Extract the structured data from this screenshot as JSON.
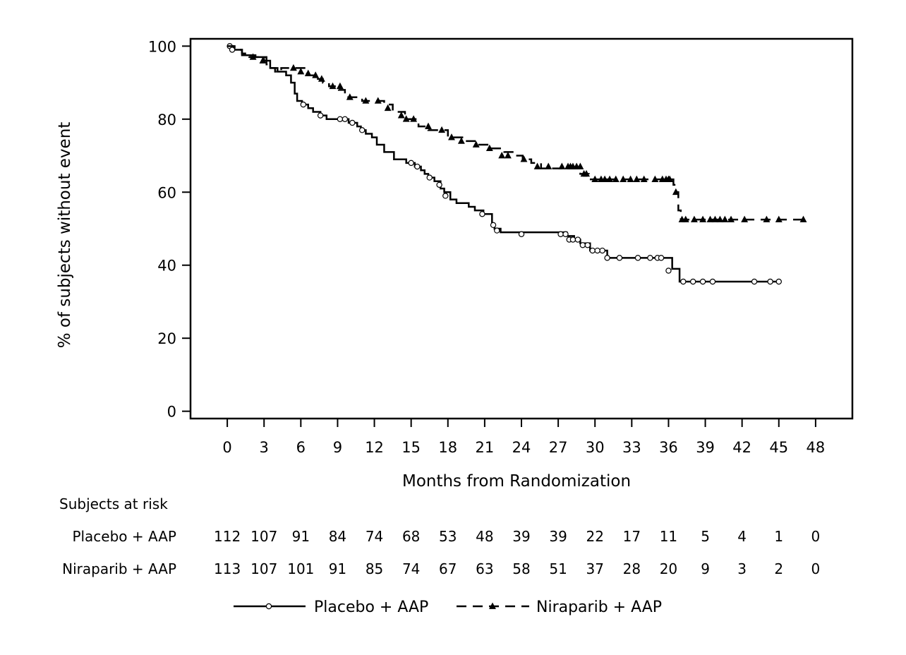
{
  "chart_data": {
    "type": "line",
    "subtype": "kaplan-meier",
    "xlabel": "Months from Randomization",
    "ylabel": "% of subjects without event",
    "xlim": [
      -3,
      51
    ],
    "ylim": [
      -2,
      102
    ],
    "xticks": [
      "0",
      "3",
      "6",
      "9",
      "12",
      "15",
      "18",
      "21",
      "24",
      "27",
      "30",
      "33",
      "36",
      "39",
      "42",
      "45",
      "48"
    ],
    "yticks": [
      "0",
      "20",
      "40",
      "60",
      "80",
      "100"
    ],
    "grid": false,
    "legend_position": "bottom",
    "series": [
      {
        "name": "Placebo + AAP",
        "line_style": "solid",
        "marker": "open-circle",
        "color": "#000000",
        "steps": [
          [
            0,
            100
          ],
          [
            0.5,
            99
          ],
          [
            1.2,
            97.5
          ],
          [
            2.3,
            97
          ],
          [
            3.2,
            96
          ],
          [
            3.5,
            94
          ],
          [
            4.1,
            93
          ],
          [
            4.8,
            92
          ],
          [
            5.2,
            90
          ],
          [
            5.5,
            87
          ],
          [
            5.7,
            85
          ],
          [
            6.1,
            84
          ],
          [
            6.6,
            83
          ],
          [
            7.0,
            82
          ],
          [
            7.6,
            81
          ],
          [
            8.1,
            80
          ],
          [
            9.9,
            79
          ],
          [
            10.6,
            78
          ],
          [
            10.9,
            77
          ],
          [
            11.3,
            76
          ],
          [
            11.8,
            75
          ],
          [
            12.2,
            73
          ],
          [
            12.8,
            71
          ],
          [
            13.6,
            69
          ],
          [
            14.6,
            68
          ],
          [
            15.3,
            67
          ],
          [
            15.8,
            66
          ],
          [
            16.1,
            65
          ],
          [
            16.4,
            64
          ],
          [
            16.9,
            63
          ],
          [
            17.4,
            61
          ],
          [
            17.7,
            60
          ],
          [
            18.2,
            58
          ],
          [
            18.7,
            57
          ],
          [
            19.7,
            56
          ],
          [
            20.2,
            55
          ],
          [
            20.9,
            54
          ],
          [
            21.6,
            51
          ],
          [
            21.8,
            50
          ],
          [
            22.3,
            49
          ],
          [
            27.7,
            48
          ],
          [
            28.3,
            47
          ],
          [
            28.8,
            46
          ],
          [
            29.6,
            44
          ],
          [
            31.0,
            42
          ],
          [
            36.3,
            39
          ],
          [
            36.9,
            35.5
          ],
          [
            45.0,
            35.5
          ]
        ],
        "censored": [
          [
            0.2,
            100
          ],
          [
            0.4,
            99
          ],
          [
            6.2,
            84
          ],
          [
            7.6,
            81
          ],
          [
            9.2,
            80
          ],
          [
            9.6,
            80
          ],
          [
            10.2,
            79
          ],
          [
            11.0,
            77
          ],
          [
            15.0,
            68
          ],
          [
            15.5,
            67
          ],
          [
            16.5,
            64
          ],
          [
            17.3,
            62
          ],
          [
            17.8,
            59
          ],
          [
            20.8,
            54
          ],
          [
            21.7,
            51
          ],
          [
            22.0,
            49.5
          ],
          [
            24.0,
            48.5
          ],
          [
            27.2,
            48.5
          ],
          [
            27.6,
            48.5
          ],
          [
            27.9,
            47
          ],
          [
            28.2,
            47
          ],
          [
            28.6,
            47
          ],
          [
            29.0,
            45.5
          ],
          [
            29.4,
            45.5
          ],
          [
            29.8,
            44
          ],
          [
            30.2,
            44
          ],
          [
            30.6,
            44
          ],
          [
            31.0,
            42
          ],
          [
            32.0,
            42
          ],
          [
            33.5,
            42
          ],
          [
            34.5,
            42
          ],
          [
            35.1,
            42
          ],
          [
            35.4,
            42
          ],
          [
            36.0,
            38.5
          ],
          [
            37.2,
            35.5
          ],
          [
            38.0,
            35.5
          ],
          [
            38.8,
            35.5
          ],
          [
            39.6,
            35.5
          ],
          [
            43.0,
            35.5
          ],
          [
            44.3,
            35.5
          ],
          [
            45.0,
            35.5
          ]
        ]
      },
      {
        "name": "Niraparib + AAP",
        "line_style": "dashed",
        "marker": "filled-triangle",
        "color": "#000000",
        "steps": [
          [
            0,
            100
          ],
          [
            0.6,
            99
          ],
          [
            1.2,
            98
          ],
          [
            1.8,
            97
          ],
          [
            2.5,
            96.5
          ],
          [
            3.0,
            96
          ],
          [
            3.2,
            95
          ],
          [
            3.5,
            94
          ],
          [
            3.9,
            93
          ],
          [
            4.4,
            94
          ],
          [
            6.5,
            92
          ],
          [
            7.3,
            91
          ],
          [
            7.8,
            90
          ],
          [
            8.3,
            89
          ],
          [
            9.1,
            88
          ],
          [
            9.6,
            86
          ],
          [
            11.0,
            85
          ],
          [
            12.8,
            84
          ],
          [
            13.5,
            82
          ],
          [
            14.5,
            80
          ],
          [
            15.6,
            78
          ],
          [
            16.4,
            77
          ],
          [
            18.0,
            75
          ],
          [
            19.3,
            74
          ],
          [
            20.2,
            73
          ],
          [
            21.4,
            72
          ],
          [
            22.6,
            71
          ],
          [
            23.4,
            70
          ],
          [
            24.1,
            69
          ],
          [
            24.8,
            68
          ],
          [
            25.6,
            66.5
          ],
          [
            28.8,
            65
          ],
          [
            29.5,
            63.5
          ],
          [
            36.4,
            62
          ],
          [
            36.6,
            60
          ],
          [
            36.8,
            55
          ],
          [
            37.0,
            52.5
          ],
          [
            47,
            52.5
          ]
        ],
        "censored": [
          [
            2.1,
            97
          ],
          [
            2.9,
            96
          ],
          [
            5.4,
            94
          ],
          [
            6.0,
            93
          ],
          [
            6.6,
            92.5
          ],
          [
            7.2,
            92
          ],
          [
            7.7,
            91
          ],
          [
            8.6,
            89
          ],
          [
            9.2,
            89
          ],
          [
            10.0,
            86
          ],
          [
            11.3,
            85
          ],
          [
            12.3,
            85
          ],
          [
            13.1,
            83
          ],
          [
            14.2,
            81
          ],
          [
            14.6,
            80
          ],
          [
            15.2,
            80
          ],
          [
            16.4,
            78
          ],
          [
            17.5,
            77
          ],
          [
            18.3,
            75
          ],
          [
            19.1,
            74
          ],
          [
            20.3,
            73
          ],
          [
            21.4,
            72
          ],
          [
            22.4,
            70
          ],
          [
            22.9,
            70
          ],
          [
            24.2,
            69
          ],
          [
            25.3,
            67
          ],
          [
            26.2,
            67
          ],
          [
            27.3,
            67
          ],
          [
            27.8,
            67
          ],
          [
            28.0,
            67
          ],
          [
            28.2,
            67
          ],
          [
            28.5,
            67
          ],
          [
            28.8,
            67
          ],
          [
            29.1,
            65
          ],
          [
            29.3,
            65
          ],
          [
            30.0,
            63.5
          ],
          [
            30.5,
            63.5
          ],
          [
            30.8,
            63.5
          ],
          [
            31.2,
            63.5
          ],
          [
            31.7,
            63.5
          ],
          [
            32.3,
            63.5
          ],
          [
            32.9,
            63.5
          ],
          [
            33.4,
            63.5
          ],
          [
            34.0,
            63.5
          ],
          [
            34.9,
            63.5
          ],
          [
            35.5,
            63.5
          ],
          [
            35.8,
            63.5
          ],
          [
            36.0,
            63.5
          ],
          [
            36.1,
            63.5
          ],
          [
            36.6,
            60
          ],
          [
            37.1,
            52.5
          ],
          [
            37.4,
            52.5
          ],
          [
            38.1,
            52.5
          ],
          [
            38.8,
            52.5
          ],
          [
            39.4,
            52.5
          ],
          [
            39.8,
            52.5
          ],
          [
            40.2,
            52.5
          ],
          [
            40.6,
            52.5
          ],
          [
            41.1,
            52.5
          ],
          [
            42.2,
            52.5
          ],
          [
            44.0,
            52.5
          ],
          [
            45.0,
            52.5
          ],
          [
            47,
            52.5
          ]
        ]
      }
    ],
    "risk_table": {
      "title": "Subjects at risk",
      "rows": [
        {
          "label": "Placebo + AAP",
          "values": [
            "112",
            "107",
            "91",
            "84",
            "74",
            "68",
            "53",
            "48",
            "39",
            "39",
            "22",
            "17",
            "11",
            "5",
            "4",
            "1",
            "0"
          ]
        },
        {
          "label": "Niraparib + AAP",
          "values": [
            "113",
            "107",
            "101",
            "91",
            "85",
            "74",
            "67",
            "63",
            "58",
            "51",
            "37",
            "28",
            "20",
            "9",
            "3",
            "2",
            "0"
          ]
        }
      ]
    }
  }
}
